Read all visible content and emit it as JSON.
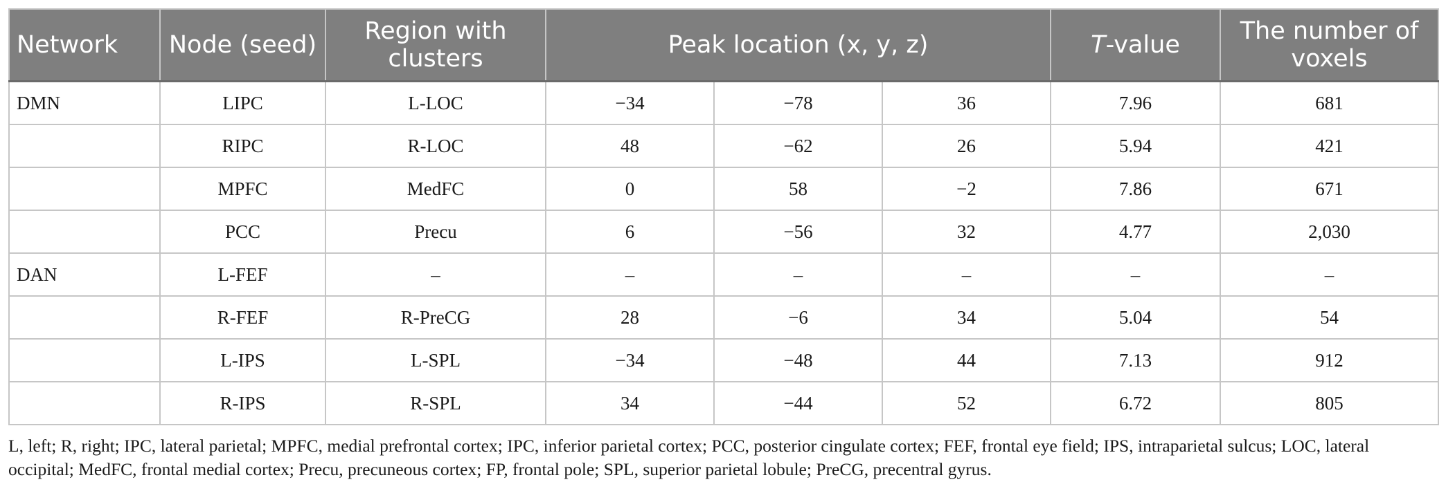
{
  "table": {
    "headers": {
      "network": "Network",
      "node": "Node (seed)",
      "region": "Region with clusters",
      "peak": "Peak location (x, y, z)",
      "t_value_italic": "T",
      "t_value_rest": "-value",
      "voxels": "The number of voxels"
    },
    "rows": [
      {
        "network": "DMN",
        "node": "LIPC",
        "region": "L-LOC",
        "x": "−34",
        "y": "−78",
        "z": "36",
        "t": "7.96",
        "voxels": "681"
      },
      {
        "network": "",
        "node": "RIPC",
        "region": "R-LOC",
        "x": "48",
        "y": "−62",
        "z": "26",
        "t": "5.94",
        "voxels": "421"
      },
      {
        "network": "",
        "node": "MPFC",
        "region": "MedFC",
        "x": "0",
        "y": "58",
        "z": "−2",
        "t": "7.86",
        "voxels": "671"
      },
      {
        "network": "",
        "node": "PCC",
        "region": "Precu",
        "x": "6",
        "y": "−56",
        "z": "32",
        "t": "4.77",
        "voxels": "2,030"
      },
      {
        "network": "DAN",
        "node": "L-FEF",
        "region": "–",
        "x": "–",
        "y": "–",
        "z": "–",
        "t": "–",
        "voxels": "–"
      },
      {
        "network": "",
        "node": "R-FEF",
        "region": "R-PreCG",
        "x": "28",
        "y": "−6",
        "z": "34",
        "t": "5.04",
        "voxels": "54"
      },
      {
        "network": "",
        "node": "L-IPS",
        "region": "L-SPL",
        "x": "−34",
        "y": "−48",
        "z": "44",
        "t": "7.13",
        "voxels": "912"
      },
      {
        "network": "",
        "node": "R-IPS",
        "region": "R-SPL",
        "x": "34",
        "y": "−44",
        "z": "52",
        "t": "6.72",
        "voxels": "805"
      }
    ]
  },
  "footnote": "L, left; R, right; IPC, lateral parietal; MPFC, medial prefrontal cortex; IPC, inferior parietal cortex; PCC, posterior cingulate cortex; FEF, frontal eye field; IPS, intraparietal sulcus; LOC, lateral occipital; MedFC, frontal medial cortex; Precu, precuneous cortex; FP, frontal pole; SPL, superior parietal lobule; PreCG, precentral gyrus.",
  "colors": {
    "header_bg": "#7f7f7f",
    "header_text": "#ffffff",
    "grid": "#c6c6c6",
    "body_text": "#1a1a1a"
  }
}
